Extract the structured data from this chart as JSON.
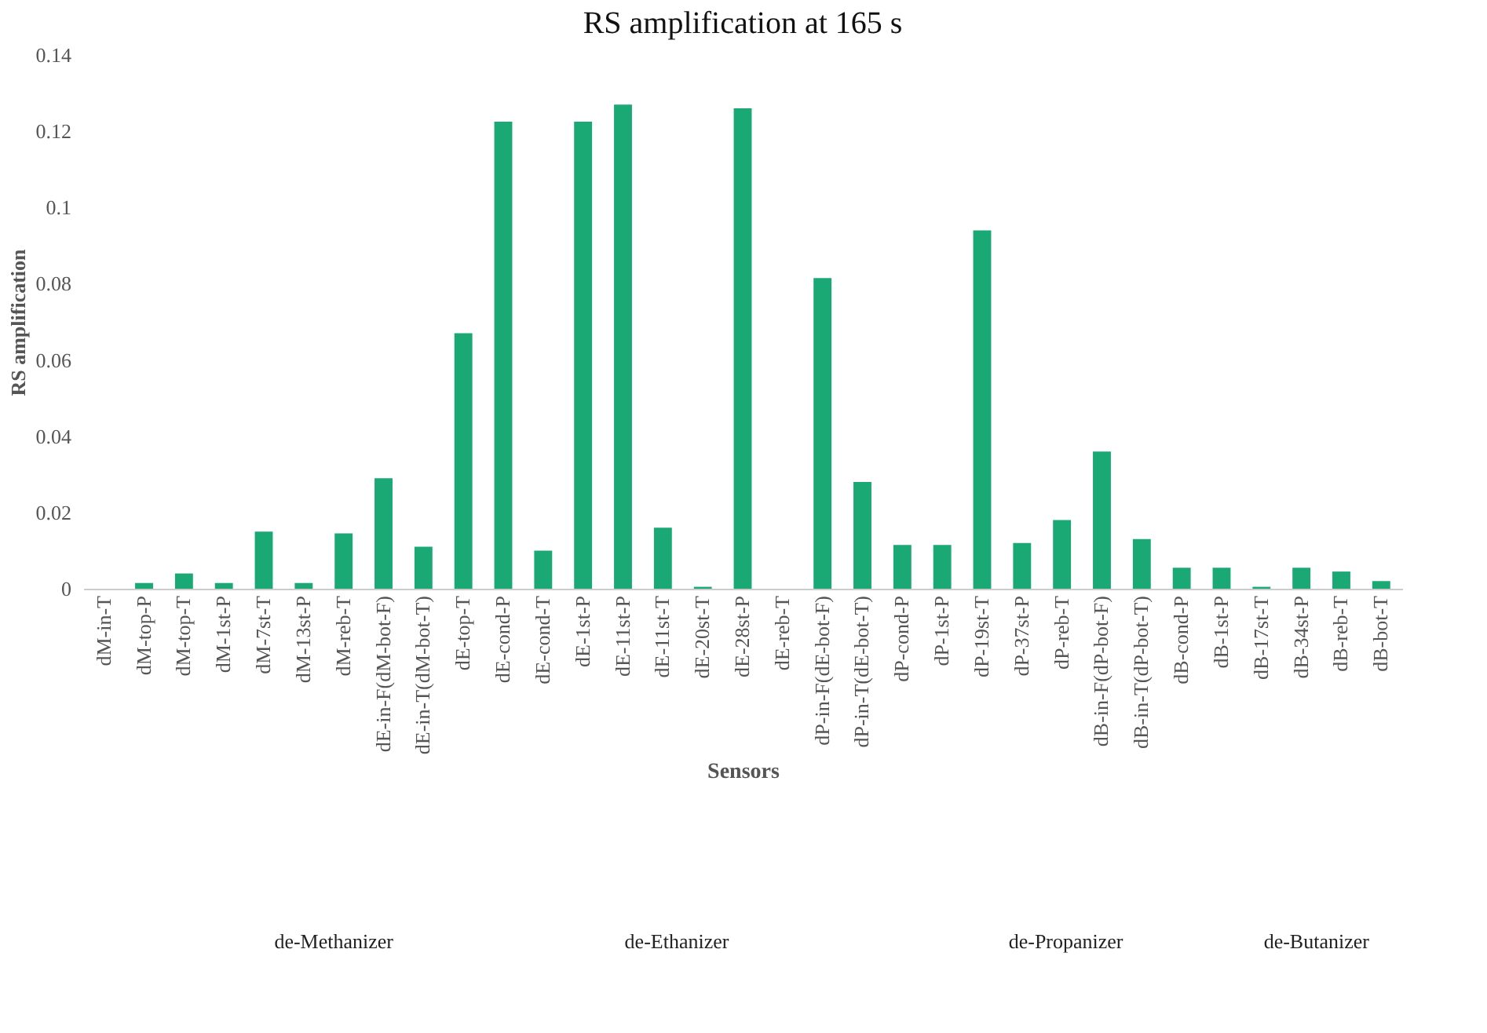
{
  "chart_data": {
    "type": "bar",
    "title": "RS amplification at 165 s",
    "xlabel": "Sensors",
    "ylabel": "RS amplification",
    "categories": [
      "dM-in-T",
      "dM-top-P",
      "dM-top-T",
      "dM-1st-P",
      "dM-7st-T",
      "dM-13st-P",
      "dM-reb-T",
      "dE-in-F(dM-bot-F)",
      "dE-in-T(dM-bot-T)",
      "dE-top-T",
      "dE-cond-P",
      "dE-cond-T",
      "dE-1st-P",
      "dE-11st-P",
      "dE-11st-T",
      "dE-20st-T",
      "dE-28st-P",
      "dE-reb-T",
      "dP-in-F(dE-bot-F)",
      "dP-in-T(dE-bot-T)",
      "dP-cond-P",
      "dP-1st-P",
      "dP-19st-T",
      "dP-37st-P",
      "dP-reb-T",
      "dB-in-F(dP-bot-F)",
      "dB-in-T(dP-bot-T)",
      "dB-cond-P",
      "dB-1st-P",
      "dB-17st-T",
      "dB-34st-P",
      "dB-reb-T",
      "dB-bot-T"
    ],
    "values": [
      0,
      0.0015,
      0.004,
      0.0015,
      0.015,
      0.0015,
      0.0145,
      0.029,
      0.011,
      0.067,
      0.1225,
      0.01,
      0.1225,
      0.127,
      0.016,
      0.0005,
      0.126,
      0,
      0.0815,
      0.028,
      0.0115,
      0.0115,
      0.094,
      0.012,
      0.018,
      0.036,
      0.013,
      0.0055,
      0.0055,
      0.0005,
      0.0055,
      0.0045,
      0.002
    ],
    "color": "#1aa874",
    "ylim": [
      0,
      0.14
    ],
    "yticks": [
      0,
      0.02,
      0.04,
      0.06,
      0.08,
      0.1,
      0.12,
      0.14
    ],
    "grid": false,
    "annotations": [
      "de-Methanizer",
      "de-Ethanizer",
      "de-Propanizer",
      "de-Butanizer"
    ]
  }
}
